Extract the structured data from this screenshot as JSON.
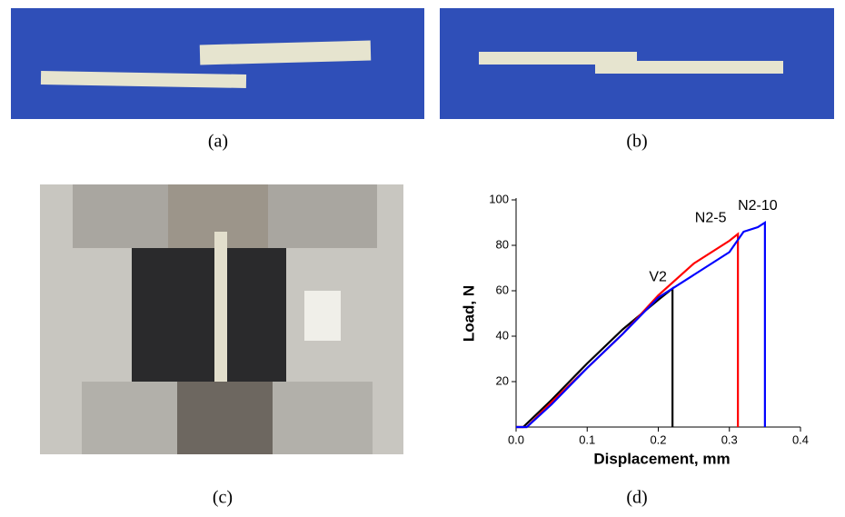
{
  "panels": {
    "a": "(a)",
    "b": "(b)",
    "c": "(c)",
    "d": "(d)"
  },
  "chart_data": {
    "type": "line",
    "xlabel": "Displacement, mm",
    "ylabel": "Load, N",
    "xlim": [
      0,
      0.4
    ],
    "xticks": [
      {
        "value": 0,
        "label": "0.0"
      },
      0.1,
      0.2,
      0.3,
      0.4
    ],
    "ylim": [
      0,
      100
    ],
    "yticks": [
      20,
      40,
      60,
      80,
      100
    ],
    "series": [
      {
        "name": "V2",
        "color": "#000000",
        "x": [
          0,
          0.01,
          0.05,
          0.1,
          0.15,
          0.2,
          0.22,
          0.22
        ],
        "values": [
          0,
          0,
          12,
          28,
          43,
          56,
          61,
          0
        ]
      },
      {
        "name": "N2-5",
        "color": "#ff0000",
        "x": [
          0,
          0.015,
          0.05,
          0.1,
          0.15,
          0.2,
          0.25,
          0.3,
          0.312,
          0.312
        ],
        "values": [
          0,
          0,
          11,
          26,
          41,
          58,
          72,
          82,
          85,
          0
        ]
      },
      {
        "name": "N2-10",
        "color": "#0000ff",
        "x": [
          0,
          0.015,
          0.05,
          0.1,
          0.15,
          0.2,
          0.25,
          0.3,
          0.32,
          0.34,
          0.35,
          0.35
        ],
        "values": [
          0,
          0,
          10,
          26,
          41,
          57,
          67,
          77,
          86,
          88,
          90,
          0
        ]
      }
    ]
  }
}
